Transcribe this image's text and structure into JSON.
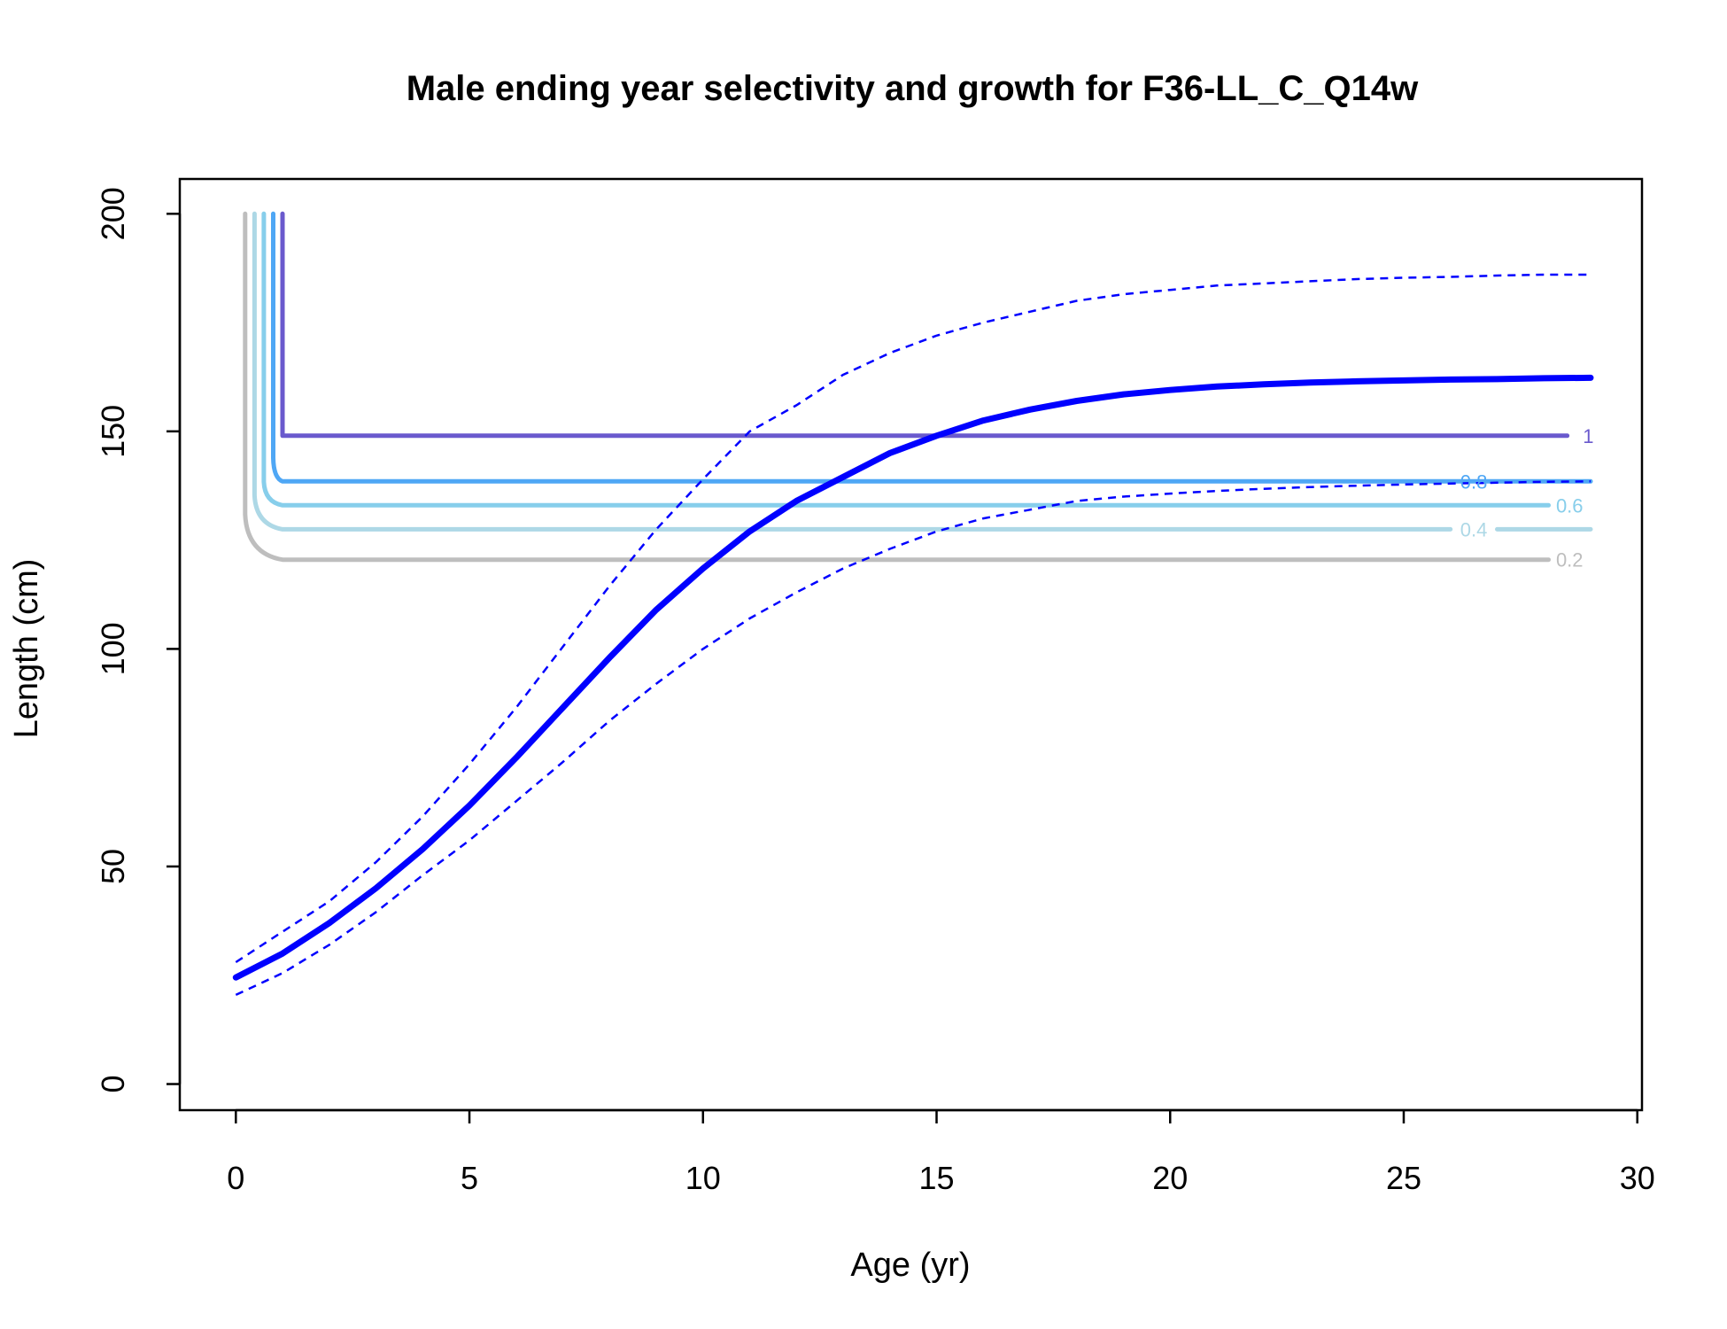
{
  "chart_data": {
    "type": "line",
    "title": "Male ending year selectivity and growth for F36-LL_C_Q14w",
    "xlabel": "Age (yr)",
    "ylabel": "Length (cm)",
    "xlim": [
      -1.2,
      30.1
    ],
    "ylim": [
      -6,
      208
    ],
    "xticks": [
      0,
      5,
      10,
      15,
      20,
      25,
      30
    ],
    "yticks": [
      0,
      50,
      100,
      150,
      200
    ],
    "grid": false,
    "legend": "none",
    "growth": {
      "color": "#0000ff",
      "mean": {
        "x": [
          0,
          1,
          2,
          3,
          4,
          5,
          6,
          7,
          8,
          9,
          10,
          11,
          12,
          13,
          14,
          15,
          16,
          17,
          18,
          19,
          20,
          21,
          22,
          23,
          24,
          25,
          26,
          27,
          28,
          29
        ],
        "y": [
          24.5,
          30,
          37,
          45,
          54,
          64,
          75,
          86.5,
          98,
          109,
          118.5,
          127,
          134,
          139.5,
          145,
          149,
          152.5,
          155,
          157,
          158.5,
          159.5,
          160.3,
          160.8,
          161.2,
          161.5,
          161.7,
          161.9,
          162,
          162.2,
          162.3
        ]
      },
      "upper": {
        "x": [
          0,
          1,
          2,
          3,
          4,
          5,
          6,
          7,
          8,
          9,
          10,
          11,
          12,
          13,
          14,
          15,
          16,
          17,
          18,
          19,
          20,
          21,
          22,
          23,
          24,
          25,
          26,
          27,
          28,
          29
        ],
        "y": [
          28,
          35,
          42,
          51,
          61.5,
          73.5,
          86.5,
          100.5,
          114.5,
          127.5,
          139,
          150,
          156,
          163,
          168,
          172,
          175,
          177.5,
          180,
          181.5,
          182.5,
          183.5,
          184,
          184.5,
          185,
          185.3,
          185.5,
          185.8,
          186,
          186
        ]
      },
      "lower": {
        "x": [
          0,
          1,
          2,
          3,
          4,
          5,
          6,
          7,
          8,
          9,
          10,
          11,
          12,
          13,
          14,
          15,
          16,
          17,
          18,
          19,
          20,
          21,
          22,
          23,
          24,
          25,
          26,
          27,
          28,
          29
        ],
        "y": [
          20.5,
          25.5,
          32,
          39.5,
          48,
          56,
          65,
          74,
          83.5,
          92,
          100,
          107,
          113,
          118.5,
          123,
          127,
          130,
          132,
          134,
          135,
          135.7,
          136.3,
          136.8,
          137.2,
          137.5,
          137.8,
          138,
          138.2,
          138.4,
          138.5
        ]
      }
    },
    "selectivity_contours": [
      {
        "level": "0.2",
        "color": "#bebebe",
        "age": 0.2,
        "length": 120.5,
        "x_end": 28.1,
        "label_x": 28.55
      },
      {
        "level": "0.4",
        "color": "#add8e6",
        "age": 0.4,
        "length": 127.5,
        "x_end": 29,
        "label_x": 26.5,
        "gap": [
          26.0,
          27.0
        ]
      },
      {
        "level": "0.6",
        "color": "#87ceeb",
        "age": 0.6,
        "length": 133,
        "x_end": 28.1,
        "label_x": 28.55
      },
      {
        "level": "0.8",
        "color": "#4fa7f5",
        "age": 0.8,
        "length": 138.5,
        "x_end": 29,
        "label_x": 26.5
      },
      {
        "level": "1",
        "color": "#6a5acd",
        "age": 1.0,
        "length": 149,
        "x_end": 28.5,
        "label_x": 28.95
      }
    ],
    "contour_top": 200
  }
}
